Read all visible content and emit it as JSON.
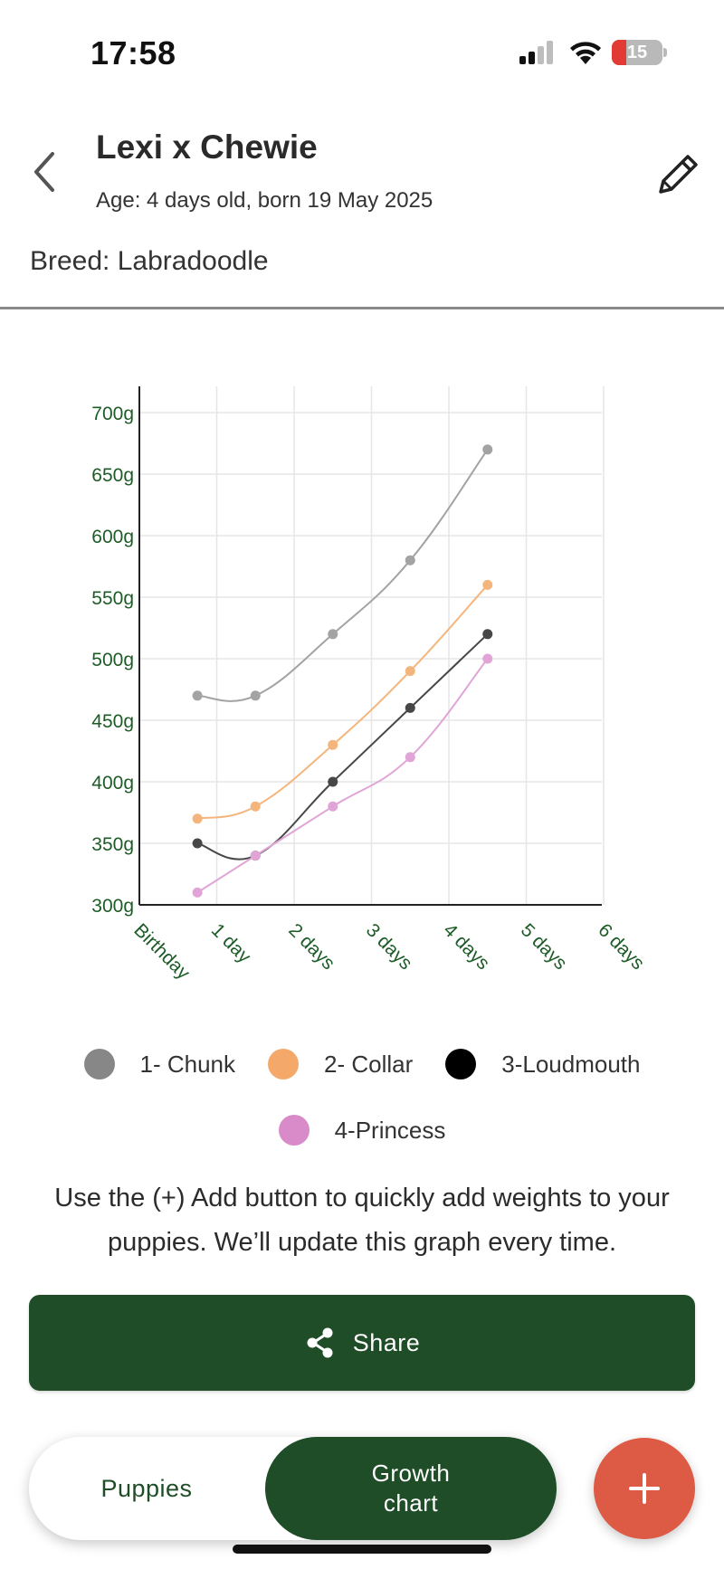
{
  "status_bar": {
    "time": "17:58",
    "battery_level": "15",
    "icons": [
      "cellular-signal-icon",
      "wifi-icon",
      "battery-icon"
    ]
  },
  "header": {
    "title": "Lexi x Chewie",
    "age": "Age: 4 days old, born 19 May 2025",
    "breed": "Breed: Labradoodle",
    "icons": [
      "back-chevron-icon",
      "pencil-icon"
    ]
  },
  "chart_data": {
    "type": "line",
    "x_categories": [
      "Birthday",
      "1 day",
      "2 days",
      "3 days",
      "4 days",
      "5 days",
      "6 days"
    ],
    "y_ticks": [
      "300g",
      "350g",
      "400g",
      "450g",
      "500g",
      "550g",
      "600g",
      "650g",
      "700g"
    ],
    "ylim": [
      300,
      700
    ],
    "y_unit": "g",
    "grid": true,
    "x_points": [
      0.75,
      1.5,
      2.5,
      3.5,
      4.5
    ],
    "series": [
      {
        "name": "1- Chunk",
        "color": "#a3a3a3",
        "values": [
          470,
          470,
          520,
          580,
          670
        ]
      },
      {
        "name": "2- Collar",
        "color": "#f4b57c",
        "values": [
          370,
          380,
          430,
          490,
          560
        ]
      },
      {
        "name": "3-Loudmouth",
        "color": "#474747",
        "values": [
          350,
          340,
          400,
          460,
          520
        ]
      },
      {
        "name": "4-Princess",
        "color": "#e0a5d6",
        "values": [
          310,
          340,
          380,
          420,
          500
        ]
      }
    ]
  },
  "legend": {
    "items": [
      {
        "label": "1- Chunk",
        "color": "#878787"
      },
      {
        "label": "2- Collar",
        "color": "#f4a96a"
      },
      {
        "label": "3-Loudmouth",
        "color": "#000000"
      },
      {
        "label": "4-Princess",
        "color": "#d98bc9"
      }
    ]
  },
  "help_text": "Use the (+) Add button to quickly add weights to your puppies. We’ll update this graph every time.",
  "share": {
    "label": "Share",
    "icon": "share-icon"
  },
  "bottom_nav": {
    "tabs": [
      {
        "label": "Puppies",
        "active": false
      },
      {
        "label": "Growth chart",
        "active": true
      }
    ]
  },
  "fab": {
    "icon": "plus-icon"
  },
  "colors": {
    "brand_green": "#1e4d27",
    "axis_label_green": "#1d5c27",
    "fab_red": "#dd5a45"
  }
}
